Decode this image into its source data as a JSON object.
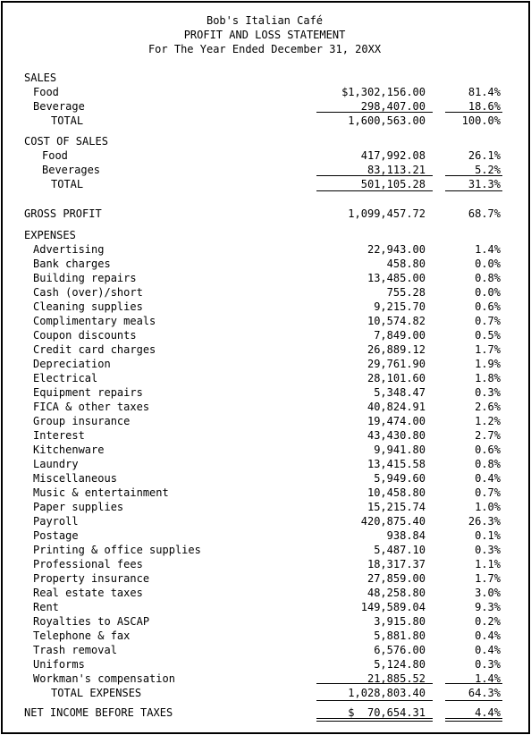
{
  "header": {
    "company": "Bob's Italian Café",
    "title": "PROFIT AND LOSS STATEMENT",
    "period": "For The Year Ended December 31, 20XX"
  },
  "sales": {
    "heading": "SALES",
    "items": [
      {
        "label": "Food",
        "amount": "$1,302,156.00",
        "percent": "81.4%"
      },
      {
        "label": "Beverage",
        "amount": "298,407.00",
        "percent": "18.6%"
      }
    ],
    "total": {
      "label": "TOTAL",
      "amount": "1,600,563.00",
      "percent": "100.0%"
    }
  },
  "cost_of_sales": {
    "heading": "COST OF SALES",
    "items": [
      {
        "label": "Food",
        "amount": "417,992.08",
        "percent": "26.1%"
      },
      {
        "label": "Beverages",
        "amount": "83,113.21",
        "percent": "5.2%"
      }
    ],
    "total": {
      "label": "TOTAL",
      "amount": "501,105.28",
      "percent": "31.3%"
    }
  },
  "gross_profit": {
    "label": "GROSS PROFIT",
    "amount": "1,099,457.72",
    "percent": "68.7%"
  },
  "expenses": {
    "heading": "EXPENSES",
    "items": [
      {
        "label": "Advertising",
        "amount": "22,943.00",
        "percent": "1.4%"
      },
      {
        "label": "Bank charges",
        "amount": "458.80",
        "percent": "0.0%"
      },
      {
        "label": "Building repairs",
        "amount": "13,485.00",
        "percent": "0.8%"
      },
      {
        "label": "Cash (over)/short",
        "amount": "755.28",
        "percent": "0.0%"
      },
      {
        "label": "Cleaning supplies",
        "amount": "9,215.70",
        "percent": "0.6%"
      },
      {
        "label": "Complimentary meals",
        "amount": "10,574.82",
        "percent": "0.7%"
      },
      {
        "label": "Coupon discounts",
        "amount": "7,849.00",
        "percent": "0.5%"
      },
      {
        "label": "Credit card charges",
        "amount": "26,889.12",
        "percent": "1.7%"
      },
      {
        "label": "Depreciation",
        "amount": "29,761.90",
        "percent": "1.9%"
      },
      {
        "label": "Electrical",
        "amount": "28,101.60",
        "percent": "1.8%"
      },
      {
        "label": "Equipment repairs",
        "amount": "5,348.47",
        "percent": "0.3%"
      },
      {
        "label": "FICA & other taxes",
        "amount": "40,824.91",
        "percent": "2.6%"
      },
      {
        "label": "Group insurance",
        "amount": "19,474.00",
        "percent": "1.2%"
      },
      {
        "label": "Interest",
        "amount": "43,430.80",
        "percent": "2.7%"
      },
      {
        "label": "Kitchenware",
        "amount": "9,941.80",
        "percent": "0.6%"
      },
      {
        "label": "Laundry",
        "amount": "13,415.58",
        "percent": "0.8%"
      },
      {
        "label": "Miscellaneous",
        "amount": "5,949.60",
        "percent": "0.4%"
      },
      {
        "label": "Music & entertainment",
        "amount": "10,458.80",
        "percent": "0.7%"
      },
      {
        "label": "Paper supplies",
        "amount": "15,215.74",
        "percent": "1.0%"
      },
      {
        "label": "Payroll",
        "amount": "420,875.40",
        "percent": "26.3%"
      },
      {
        "label": "Postage",
        "amount": "938.84",
        "percent": "0.1%"
      },
      {
        "label": "Printing & office supplies",
        "amount": "5,487.10",
        "percent": "0.3%"
      },
      {
        "label": "Professional fees",
        "amount": "18,317.37",
        "percent": "1.1%"
      },
      {
        "label": "Property insurance",
        "amount": "27,859.00",
        "percent": "1.7%"
      },
      {
        "label": "Real estate taxes",
        "amount": "48,258.80",
        "percent": "3.0%"
      },
      {
        "label": "Rent",
        "amount": "149,589.04",
        "percent": "9.3%"
      },
      {
        "label": "Royalties to ASCAP",
        "amount": "3,915.80",
        "percent": "0.2%"
      },
      {
        "label": "Telephone & fax",
        "amount": "5,881.80",
        "percent": "0.4%"
      },
      {
        "label": "Trash removal",
        "amount": "6,576.00",
        "percent": "0.4%"
      },
      {
        "label": "Uniforms",
        "amount": "5,124.80",
        "percent": "0.3%"
      },
      {
        "label": "Workman's compensation",
        "amount": "21,885.52",
        "percent": "1.4%"
      }
    ],
    "total": {
      "label": "TOTAL EXPENSES",
      "amount": "1,028,803.40",
      "percent": "64.3%"
    }
  },
  "net_income": {
    "label": "NET INCOME BEFORE TAXES",
    "amount": "$  70,654.31",
    "percent": "4.4%"
  }
}
